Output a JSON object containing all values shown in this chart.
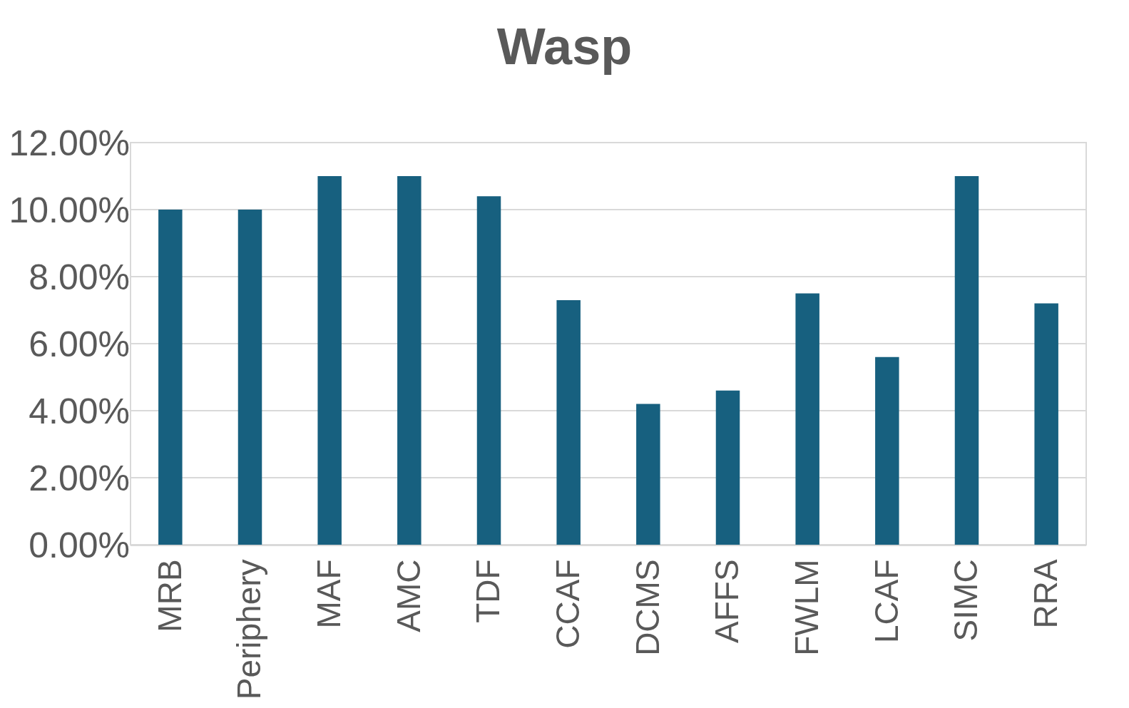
{
  "chart_data": {
    "type": "bar",
    "title": "Wasp",
    "categories": [
      "MRB",
      "Periphery",
      "MAF",
      "AMC",
      "TDF",
      "CCAF",
      "DCMS",
      "AFFS",
      "FWLM",
      "LCAF",
      "SIMC",
      "RRA"
    ],
    "values": [
      10.0,
      10.0,
      11.0,
      11.0,
      10.4,
      7.3,
      4.2,
      4.6,
      7.5,
      5.6,
      11.0,
      7.2
    ],
    "color": "#17607f",
    "ylim": [
      0,
      12
    ],
    "yticks": [
      {
        "value": 0,
        "label": "0.00%"
      },
      {
        "value": 2,
        "label": "2.00%"
      },
      {
        "value": 4,
        "label": "4.00%"
      },
      {
        "value": 6,
        "label": "6.00%"
      },
      {
        "value": 8,
        "label": "8.00%"
      },
      {
        "value": 10,
        "label": "10.00%"
      },
      {
        "value": 12,
        "label": "12.00%"
      }
    ],
    "grid": "y",
    "legend": false
  }
}
